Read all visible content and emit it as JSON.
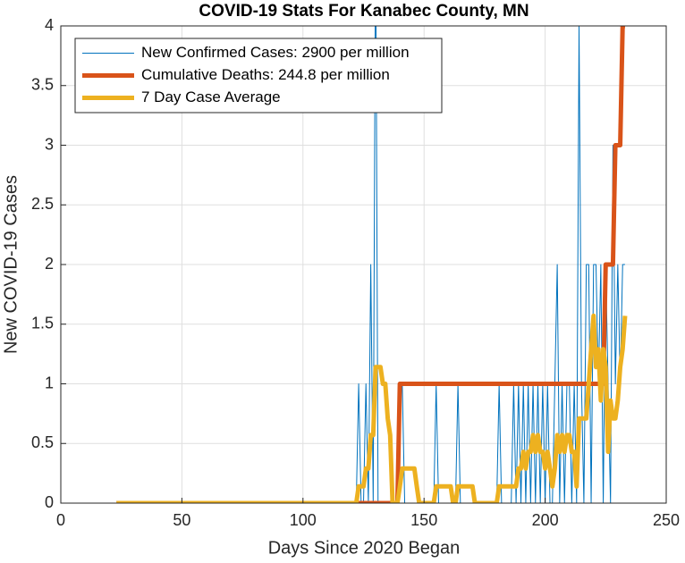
{
  "chart_data": {
    "type": "line",
    "title": "COVID-19 Stats For Kanabec County, MN",
    "xlabel": "Days Since 2020 Began",
    "ylabel": "New COVID-19 Cases",
    "xlim": [
      0,
      250
    ],
    "xticks": [
      0,
      50,
      100,
      150,
      200,
      250
    ],
    "ylim": [
      0,
      4
    ],
    "yticks": [
      0,
      0.5,
      1,
      1.5,
      2,
      2.5,
      3,
      3.5,
      4
    ],
    "grid": true,
    "legend": "upper-left",
    "x": [
      23,
      24,
      25,
      26,
      27,
      28,
      29,
      30,
      31,
      32,
      33,
      34,
      35,
      36,
      37,
      38,
      39,
      40,
      41,
      42,
      43,
      44,
      45,
      46,
      47,
      48,
      49,
      50,
      51,
      52,
      53,
      54,
      55,
      56,
      57,
      58,
      59,
      60,
      61,
      62,
      63,
      64,
      65,
      66,
      67,
      68,
      69,
      70,
      71,
      72,
      73,
      74,
      75,
      76,
      77,
      78,
      79,
      80,
      81,
      82,
      83,
      84,
      85,
      86,
      87,
      88,
      89,
      90,
      91,
      92,
      93,
      94,
      95,
      96,
      97,
      98,
      99,
      100,
      101,
      102,
      103,
      104,
      105,
      106,
      107,
      108,
      109,
      110,
      111,
      112,
      113,
      114,
      115,
      116,
      117,
      118,
      119,
      120,
      121,
      122,
      123,
      124,
      125,
      126,
      127,
      128,
      129,
      130,
      131,
      132,
      133,
      134,
      135,
      136,
      137,
      138,
      139,
      140,
      141,
      142,
      143,
      144,
      145,
      146,
      147,
      148,
      149,
      150,
      151,
      152,
      153,
      154,
      155,
      156,
      157,
      158,
      159,
      160,
      161,
      162,
      163,
      164,
      165,
      166,
      167,
      168,
      169,
      170,
      171,
      172,
      173,
      174,
      175,
      176,
      177,
      178,
      179,
      180,
      181,
      182,
      183,
      184,
      185,
      186,
      187,
      188,
      189,
      190,
      191,
      192,
      193,
      194,
      195,
      196,
      197,
      198,
      199,
      200,
      201,
      202,
      203,
      204,
      205,
      206,
      207,
      208,
      209,
      210,
      211,
      212,
      213,
      214,
      215,
      216,
      217,
      218,
      219,
      220,
      221,
      222,
      223,
      224,
      225,
      226,
      227,
      228,
      229,
      230,
      231,
      232,
      233
    ],
    "series": [
      {
        "name": "New Confirmed Cases: 2900 per million",
        "color": "#0072BD",
        "width": 1,
        "values": [
          0,
          0,
          0,
          0,
          0,
          0,
          0,
          0,
          0,
          0,
          0,
          0,
          0,
          0,
          0,
          0,
          0,
          0,
          0,
          0,
          0,
          0,
          0,
          0,
          0,
          0,
          0,
          0,
          0,
          0,
          0,
          0,
          0,
          0,
          0,
          0,
          0,
          0,
          0,
          0,
          0,
          0,
          0,
          0,
          0,
          0,
          0,
          0,
          0,
          0,
          0,
          0,
          0,
          0,
          0,
          0,
          0,
          0,
          0,
          0,
          0,
          0,
          0,
          0,
          0,
          0,
          0,
          0,
          0,
          0,
          0,
          0,
          0,
          0,
          0,
          0,
          0,
          0,
          0,
          0,
          0,
          0,
          0,
          0,
          0,
          0,
          0,
          0,
          0,
          0,
          0,
          0,
          0,
          0,
          0,
          0,
          0,
          0,
          0,
          0,
          1,
          0,
          0,
          1,
          0,
          2,
          0,
          5,
          0,
          0,
          0,
          0,
          0,
          0,
          0,
          0,
          0,
          1,
          1,
          0,
          0,
          0,
          0,
          0,
          0,
          0,
          0,
          0,
          0,
          0,
          0,
          0,
          1,
          0,
          0,
          0,
          0,
          0,
          0,
          0,
          0,
          1,
          0,
          0,
          0,
          0,
          0,
          0,
          0,
          0,
          0,
          0,
          0,
          0,
          0,
          0,
          0,
          0,
          1,
          0,
          0,
          0,
          0,
          0,
          1,
          0,
          1,
          0,
          1,
          0,
          1,
          0,
          1,
          0,
          1,
          0,
          1,
          0,
          1,
          0,
          0,
          1,
          2,
          0,
          1,
          0,
          1,
          1,
          0,
          1,
          0,
          4,
          1,
          0,
          2,
          2,
          0,
          2,
          2,
          1,
          2,
          0,
          2,
          1,
          0,
          3,
          1,
          2,
          1,
          2,
          2
        ]
      },
      {
        "name": "Cumulative Deaths: 244.8 per million",
        "color": "#D95319",
        "width": 5,
        "values": [
          0,
          0,
          0,
          0,
          0,
          0,
          0,
          0,
          0,
          0,
          0,
          0,
          0,
          0,
          0,
          0,
          0,
          0,
          0,
          0,
          0,
          0,
          0,
          0,
          0,
          0,
          0,
          0,
          0,
          0,
          0,
          0,
          0,
          0,
          0,
          0,
          0,
          0,
          0,
          0,
          0,
          0,
          0,
          0,
          0,
          0,
          0,
          0,
          0,
          0,
          0,
          0,
          0,
          0,
          0,
          0,
          0,
          0,
          0,
          0,
          0,
          0,
          0,
          0,
          0,
          0,
          0,
          0,
          0,
          0,
          0,
          0,
          0,
          0,
          0,
          0,
          0,
          0,
          0,
          0,
          0,
          0,
          0,
          0,
          0,
          0,
          0,
          0,
          0,
          0,
          0,
          0,
          0,
          0,
          0,
          0,
          0,
          0,
          0,
          0,
          0,
          0,
          0,
          0,
          0,
          0,
          0,
          0,
          0,
          0,
          0,
          0,
          0,
          0,
          0,
          0,
          0,
          1,
          1,
          1,
          1,
          1,
          1,
          1,
          1,
          1,
          1,
          1,
          1,
          1,
          1,
          1,
          1,
          1,
          1,
          1,
          1,
          1,
          1,
          1,
          1,
          1,
          1,
          1,
          1,
          1,
          1,
          1,
          1,
          1,
          1,
          1,
          1,
          1,
          1,
          1,
          1,
          1,
          1,
          1,
          1,
          1,
          1,
          1,
          1,
          1,
          1,
          1,
          1,
          1,
          1,
          1,
          1,
          1,
          1,
          1,
          1,
          1,
          1,
          1,
          1,
          1,
          1,
          1,
          1,
          1,
          1,
          1,
          1,
          1,
          1,
          1,
          1,
          1,
          1,
          1,
          1,
          1,
          1,
          1,
          1,
          1,
          2,
          2,
          2,
          2,
          3,
          3,
          3,
          4,
          4
        ]
      },
      {
        "name": "7 Day Case Average",
        "color": "#EDB120",
        "width": 5,
        "values": [
          0,
          0,
          0,
          0,
          0,
          0,
          0,
          0,
          0,
          0,
          0,
          0,
          0,
          0,
          0,
          0,
          0,
          0,
          0,
          0,
          0,
          0,
          0,
          0,
          0,
          0,
          0,
          0,
          0,
          0,
          0,
          0,
          0,
          0,
          0,
          0,
          0,
          0,
          0,
          0,
          0,
          0,
          0,
          0,
          0,
          0,
          0,
          0,
          0,
          0,
          0,
          0,
          0,
          0,
          0,
          0,
          0,
          0,
          0,
          0,
          0,
          0,
          0,
          0,
          0,
          0,
          0,
          0,
          0,
          0,
          0,
          0,
          0,
          0,
          0,
          0,
          0,
          0,
          0,
          0,
          0,
          0,
          0,
          0,
          0,
          0,
          0,
          0,
          0,
          0,
          0,
          0,
          0,
          0,
          0,
          0,
          0,
          0,
          0,
          0,
          0.14,
          0.14,
          0.14,
          0.29,
          0.29,
          0.57,
          0.57,
          1.14,
          1.14,
          1.14,
          1,
          1,
          0.71,
          0.57,
          0,
          0,
          0,
          0.14,
          0.29,
          0.29,
          0.29,
          0.29,
          0.29,
          0.29,
          0.14,
          0,
          0,
          0,
          0,
          0,
          0,
          0,
          0.14,
          0.14,
          0.14,
          0.14,
          0.14,
          0.14,
          0.14,
          0,
          0,
          0.14,
          0.14,
          0.14,
          0.14,
          0.14,
          0.14,
          0.14,
          0,
          0,
          0,
          0,
          0,
          0,
          0,
          0,
          0,
          0,
          0.14,
          0.14,
          0.14,
          0.14,
          0.14,
          0.14,
          0.14,
          0.14,
          0.29,
          0.29,
          0.43,
          0.29,
          0.43,
          0.43,
          0.57,
          0.43,
          0.57,
          0.43,
          0.43,
          0.29,
          0.43,
          0.29,
          0.14,
          0.29,
          0.57,
          0.43,
          0.57,
          0.43,
          0.57,
          0.57,
          0.43,
          0.43,
          0.14,
          0.71,
          0.71,
          0.71,
          0.71,
          1,
          1.29,
          1.57,
          1.14,
          1.29,
          0.86,
          1.29,
          1.14,
          0.43,
          0.86,
          0.71,
          0.71,
          0.86,
          1.14,
          1.29,
          1.57
        ]
      }
    ]
  }
}
